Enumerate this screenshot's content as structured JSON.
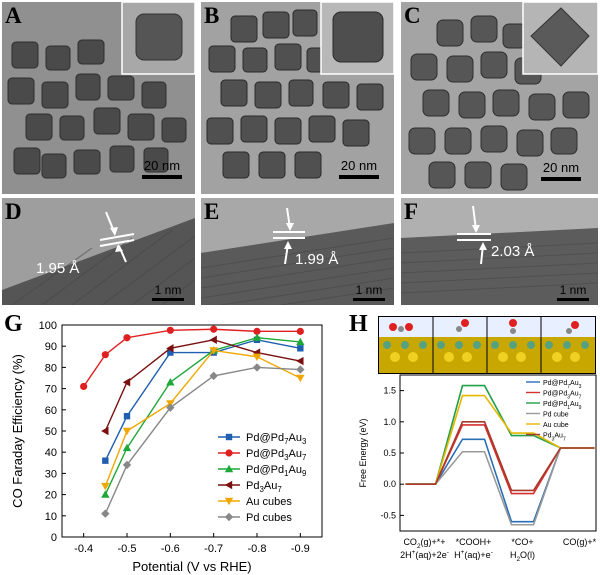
{
  "panels": {
    "A": {
      "label": "A",
      "scale": "20 nm"
    },
    "B": {
      "label": "B",
      "scale": "20 nm"
    },
    "C": {
      "label": "C",
      "scale": "20 nm"
    },
    "D": {
      "label": "D",
      "spacing": "1.95 Å",
      "scale": "1 nm"
    },
    "E": {
      "label": "E",
      "spacing": "1.99 Å",
      "scale": "1 nm"
    },
    "F": {
      "label": "F",
      "spacing": "2.03 Å",
      "scale": "1 nm"
    },
    "G": {
      "label": "G"
    },
    "H": {
      "label": "H"
    }
  },
  "chart_data": [
    {
      "type": "line",
      "panel": "G",
      "xlabel": "Potential (V vs RHE)",
      "ylabel": "CO Faraday Efficiency (%)",
      "xlim": [
        -0.95,
        -0.35
      ],
      "ylim": [
        0,
        100
      ],
      "xticks": [
        "-0.4",
        "-0.5",
        "-0.6",
        "-0.7",
        "-0.8",
        "-0.9"
      ],
      "yticks": [
        "0",
        "10",
        "20",
        "30",
        "40",
        "50",
        "60",
        "70",
        "80",
        "90",
        "100"
      ],
      "legend_position": "lower-right",
      "series": [
        {
          "name": "Pd@Pd7Au3",
          "legend": [
            "Pd@Pd",
            "7",
            "Au",
            "3"
          ],
          "color": "#1f5fb0",
          "marker": "square",
          "x": [
            -0.45,
            -0.5,
            -0.6,
            -0.7,
            -0.8,
            -0.9
          ],
          "values": [
            36,
            57,
            87,
            87,
            93,
            89
          ]
        },
        {
          "name": "Pd@Pd3Au7",
          "legend": [
            "Pd@Pd",
            "3",
            "Au",
            "7"
          ],
          "color": "#e02020",
          "marker": "circle",
          "x": [
            -0.4,
            -0.45,
            -0.5,
            -0.6,
            -0.7,
            -0.8,
            -0.9
          ],
          "values": [
            71,
            86,
            94,
            97.5,
            98,
            97,
            97
          ]
        },
        {
          "name": "Pd@Pd1Au9",
          "legend": [
            "Pd@Pd",
            "1",
            "Au",
            "9"
          ],
          "color": "#1ea838",
          "marker": "triangle",
          "x": [
            -0.45,
            -0.5,
            -0.6,
            -0.7,
            -0.8,
            -0.9
          ],
          "values": [
            20,
            42,
            73,
            88,
            94,
            92
          ]
        },
        {
          "name": "Pd3Au7",
          "legend": [
            "Pd",
            "3",
            "Au",
            "7"
          ],
          "color": "#7a1010",
          "marker": "triangle-left",
          "x": [
            -0.45,
            -0.5,
            -0.6,
            -0.7,
            -0.8,
            -0.9
          ],
          "values": [
            50,
            73,
            89,
            93,
            87,
            83
          ]
        },
        {
          "name": "Au cubes",
          "legend": [
            "Au cubes"
          ],
          "color": "#f0a800",
          "marker": "triangle-down",
          "x": [
            -0.45,
            -0.5,
            -0.6,
            -0.7,
            -0.8,
            -0.9
          ],
          "values": [
            24,
            50,
            63,
            88,
            85,
            75
          ]
        },
        {
          "name": "Pd cubes",
          "legend": [
            "Pd cubes"
          ],
          "color": "#888888",
          "marker": "diamond",
          "x": [
            -0.45,
            -0.5,
            -0.6,
            -0.7,
            -0.8,
            -0.9
          ],
          "values": [
            11,
            34,
            61,
            76,
            80,
            79
          ]
        }
      ]
    },
    {
      "type": "line",
      "panel": "H",
      "ylabel": "Free Energy (eV)",
      "ylim": [
        -0.75,
        1.75
      ],
      "yticks": [
        "-0.5",
        "0.0",
        "0.5",
        "1.0",
        "1.5"
      ],
      "categories": [
        [
          "CO",
          "2",
          "(g)+*+",
          "2H",
          "+",
          "(aq)+2e",
          "-"
        ],
        [
          "*COOH+",
          "H",
          "+",
          "(aq)+e",
          "-"
        ],
        [
          "*CO+",
          "H",
          "2",
          "O(l)"
        ],
        [
          "CO(g)+*"
        ]
      ],
      "legend_position": "top-right",
      "series": [
        {
          "name": "Pd@Pd7Au3",
          "legend": [
            "Pd@Pd",
            "7",
            "Au",
            "3"
          ],
          "color": "#2a6fb5",
          "values": [
            0,
            0.72,
            -0.6,
            0.58
          ]
        },
        {
          "name": "Pd@Pd3Au7",
          "legend": [
            "Pd@Pd",
            "3",
            "Au",
            "7"
          ],
          "color": "#d63030",
          "values": [
            0,
            0.95,
            -0.15,
            0.58
          ]
        },
        {
          "name": "Pd@Pd1Au9",
          "legend": [
            "Pd@Pd",
            "1",
            "Au",
            "9"
          ],
          "color": "#22a04a",
          "values": [
            0,
            1.58,
            0.78,
            0.58
          ]
        },
        {
          "name": "Pd cube",
          "legend": [
            "Pd cube"
          ],
          "color": "#9a9a9a",
          "values": [
            0,
            0.52,
            -0.65,
            0.58
          ]
        },
        {
          "name": "Au cube",
          "legend": [
            "Au cube"
          ],
          "color": "#e6b800",
          "values": [
            0,
            1.42,
            0.82,
            0.58
          ]
        },
        {
          "name": "Pd3Au7",
          "legend": [
            "Pd",
            "3",
            "Au",
            "7"
          ],
          "color": "#a83a2a",
          "values": [
            0,
            1.0,
            -0.1,
            0.58
          ]
        }
      ]
    }
  ]
}
